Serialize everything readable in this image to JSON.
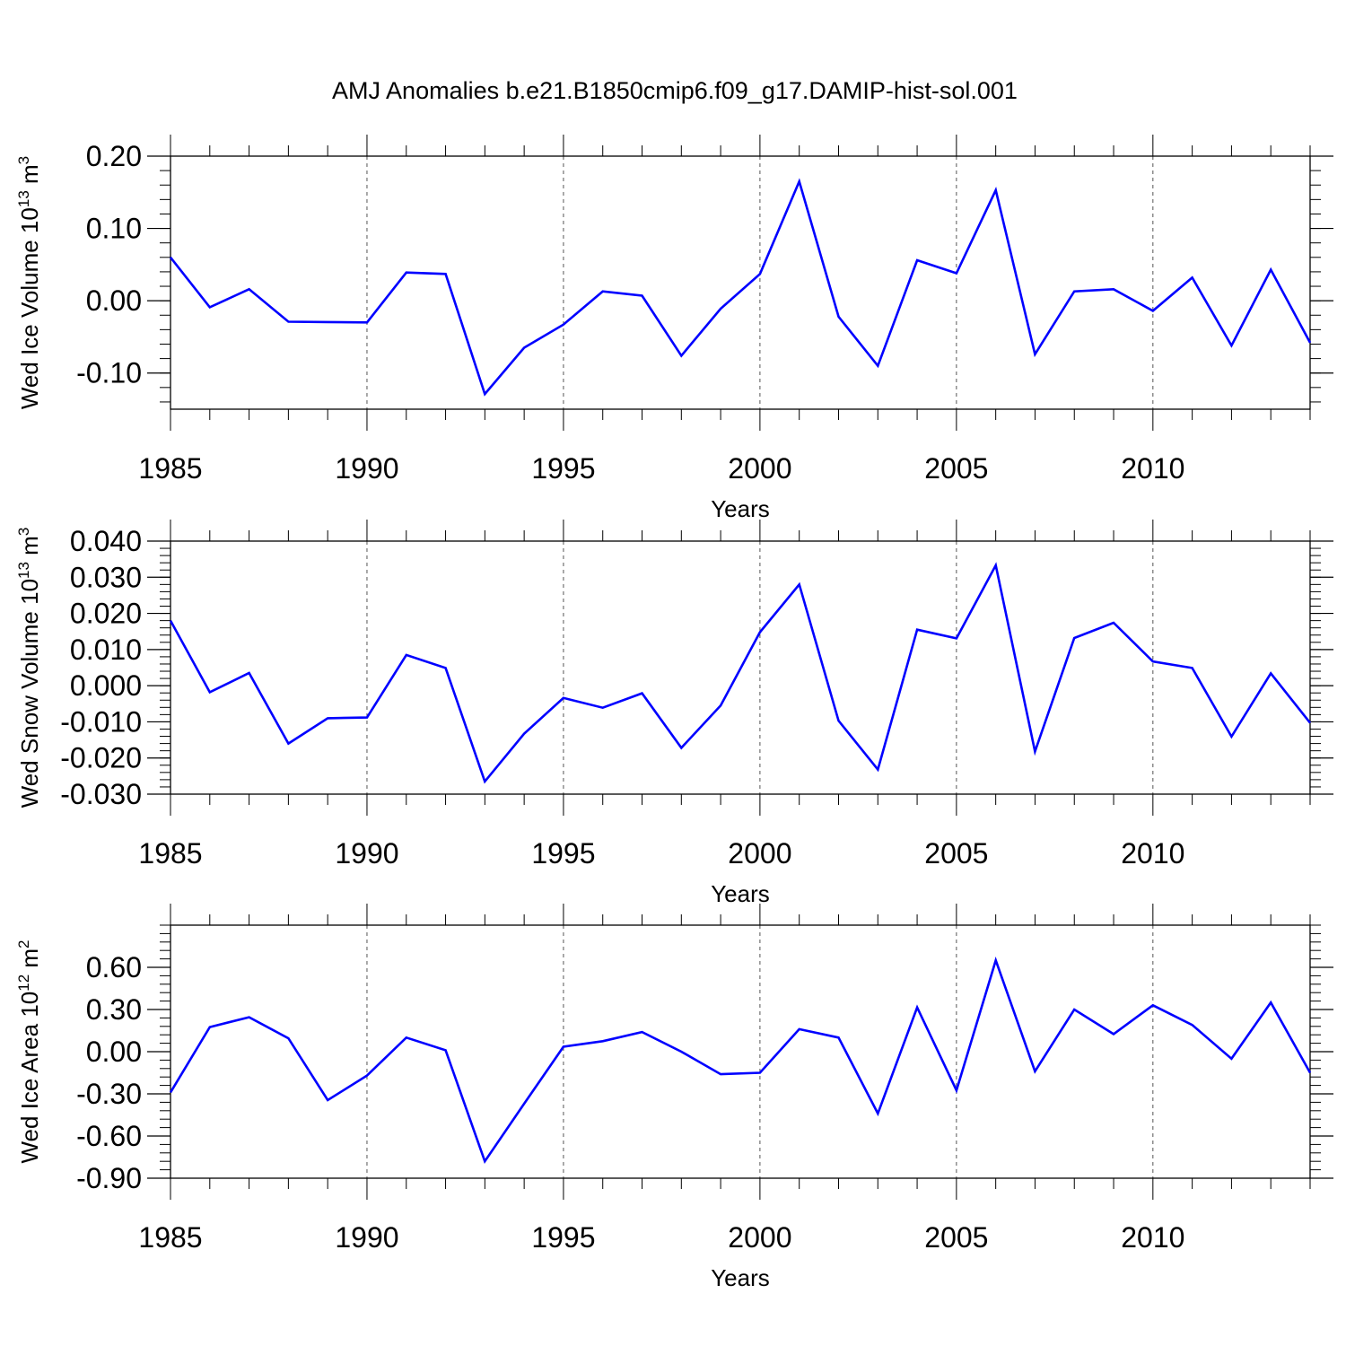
{
  "title": "AMJ Anomalies b.e21.B1850cmip6.f09_g17.DAMIP-hist-sol.001",
  "line_color": "#0000ff",
  "chart_data": [
    {
      "type": "line",
      "name": "Wed Ice Volume",
      "ylabel": "Wed Ice Volume 10",
      "ylabel_exp": "13",
      "ylabel_unit": " m",
      "ylabel_unit_exp": "3",
      "xlabel": "Years",
      "xlim": [
        1985,
        2014
      ],
      "ylim": [
        -0.15,
        0.2
      ],
      "yticks": [
        -0.1,
        0.0,
        0.1,
        0.2
      ],
      "ytick_labels": [
        "-0.10",
        "0.00",
        "0.10",
        "0.20"
      ],
      "xticks": [
        1985,
        1990,
        1995,
        2000,
        2005,
        2010
      ],
      "xtick_labels": [
        "1985",
        "1990",
        "1995",
        "2000",
        "2005",
        "2010"
      ],
      "grid_x": [
        1990,
        1995,
        2000,
        2005,
        2010
      ],
      "x": [
        1985,
        1986,
        1987,
        1988,
        1989,
        1990,
        1991,
        1992,
        1993,
        1994,
        1995,
        1996,
        1997,
        1998,
        1999,
        2000,
        2001,
        2002,
        2003,
        2004,
        2005,
        2006,
        2007,
        2008,
        2009,
        2010,
        2011,
        2012,
        2013,
        2014
      ],
      "values": [
        0.06,
        -0.009,
        0.016,
        -0.029,
        -0.0295,
        -0.03,
        0.039,
        0.037,
        -0.129,
        -0.065,
        -0.033,
        0.013,
        0.007,
        -0.076,
        -0.011,
        0.037,
        0.165,
        -0.022,
        -0.09,
        0.056,
        0.038,
        0.153,
        -0.074,
        0.013,
        0.016,
        -0.014,
        0.032,
        -0.062,
        0.043,
        -0.058
      ]
    },
    {
      "type": "line",
      "name": "Wed Snow Volume",
      "ylabel": "Wed Snow Volume 10",
      "ylabel_exp": "13",
      "ylabel_unit": " m",
      "ylabel_unit_exp": "3",
      "xlabel": "Years",
      "xlim": [
        1985,
        2014
      ],
      "ylim": [
        -0.03,
        0.04
      ],
      "yticks": [
        -0.03,
        -0.02,
        -0.01,
        0.0,
        0.01,
        0.02,
        0.03,
        0.04
      ],
      "ytick_labels": [
        "-0.030",
        "-0.020",
        "-0.010",
        "0.000",
        "0.010",
        "0.020",
        "0.030",
        "0.040"
      ],
      "xticks": [
        1985,
        1990,
        1995,
        2000,
        2005,
        2010
      ],
      "xtick_labels": [
        "1985",
        "1990",
        "1995",
        "2000",
        "2005",
        "2010"
      ],
      "grid_x": [
        1990,
        1995,
        2000,
        2005,
        2010
      ],
      "x": [
        1985,
        1986,
        1987,
        1988,
        1989,
        1990,
        1991,
        1992,
        1993,
        1994,
        1995,
        1996,
        1997,
        1998,
        1999,
        2000,
        2001,
        2002,
        2003,
        2004,
        2005,
        2006,
        2007,
        2008,
        2009,
        2010,
        2011,
        2012,
        2013,
        2014
      ],
      "values": [
        0.018,
        -0.0018,
        0.0035,
        -0.016,
        -0.009,
        -0.0088,
        0.0085,
        0.0049,
        -0.0265,
        -0.0133,
        -0.0034,
        -0.0061,
        -0.0021,
        -0.0172,
        -0.0055,
        0.0148,
        0.028,
        -0.0097,
        -0.0232,
        0.0155,
        0.0131,
        0.0333,
        -0.0182,
        0.0132,
        0.0174,
        0.0067,
        0.0049,
        -0.0141,
        0.0034,
        -0.0103
      ]
    },
    {
      "type": "line",
      "name": "Wed Ice Area",
      "ylabel": "Wed Ice Area 10",
      "ylabel_exp": "12",
      "ylabel_unit": " m",
      "ylabel_unit_exp": "2",
      "xlabel": "Years",
      "xlim": [
        1985,
        2014
      ],
      "ylim": [
        -0.9,
        0.9
      ],
      "yticks": [
        -0.9,
        -0.6,
        -0.3,
        0.0,
        0.3,
        0.6
      ],
      "ytick_labels": [
        "-0.90",
        "-0.60",
        "-0.30",
        "0.00",
        "0.30",
        "0.60"
      ],
      "xticks": [
        1985,
        1990,
        1995,
        2000,
        2005,
        2010
      ],
      "xtick_labels": [
        "1985",
        "1990",
        "1995",
        "2000",
        "2005",
        "2010"
      ],
      "grid_x": [
        1990,
        1995,
        2000,
        2005,
        2010
      ],
      "x": [
        1985,
        1986,
        1987,
        1988,
        1989,
        1990,
        1991,
        1992,
        1993,
        1994,
        1995,
        1996,
        1997,
        1998,
        1999,
        2000,
        2001,
        2002,
        2003,
        2004,
        2005,
        2006,
        2007,
        2008,
        2009,
        2010,
        2011,
        2012,
        2013,
        2014
      ],
      "values": [
        -0.29,
        0.175,
        0.245,
        0.095,
        -0.345,
        -0.17,
        0.1,
        0.01,
        -0.78,
        -0.37,
        0.035,
        0.075,
        0.14,
        0.0,
        -0.16,
        -0.15,
        0.16,
        0.1,
        -0.44,
        0.315,
        -0.275,
        0.65,
        -0.14,
        0.3,
        0.125,
        0.33,
        0.19,
        -0.05,
        0.35,
        -0.15
      ]
    }
  ]
}
